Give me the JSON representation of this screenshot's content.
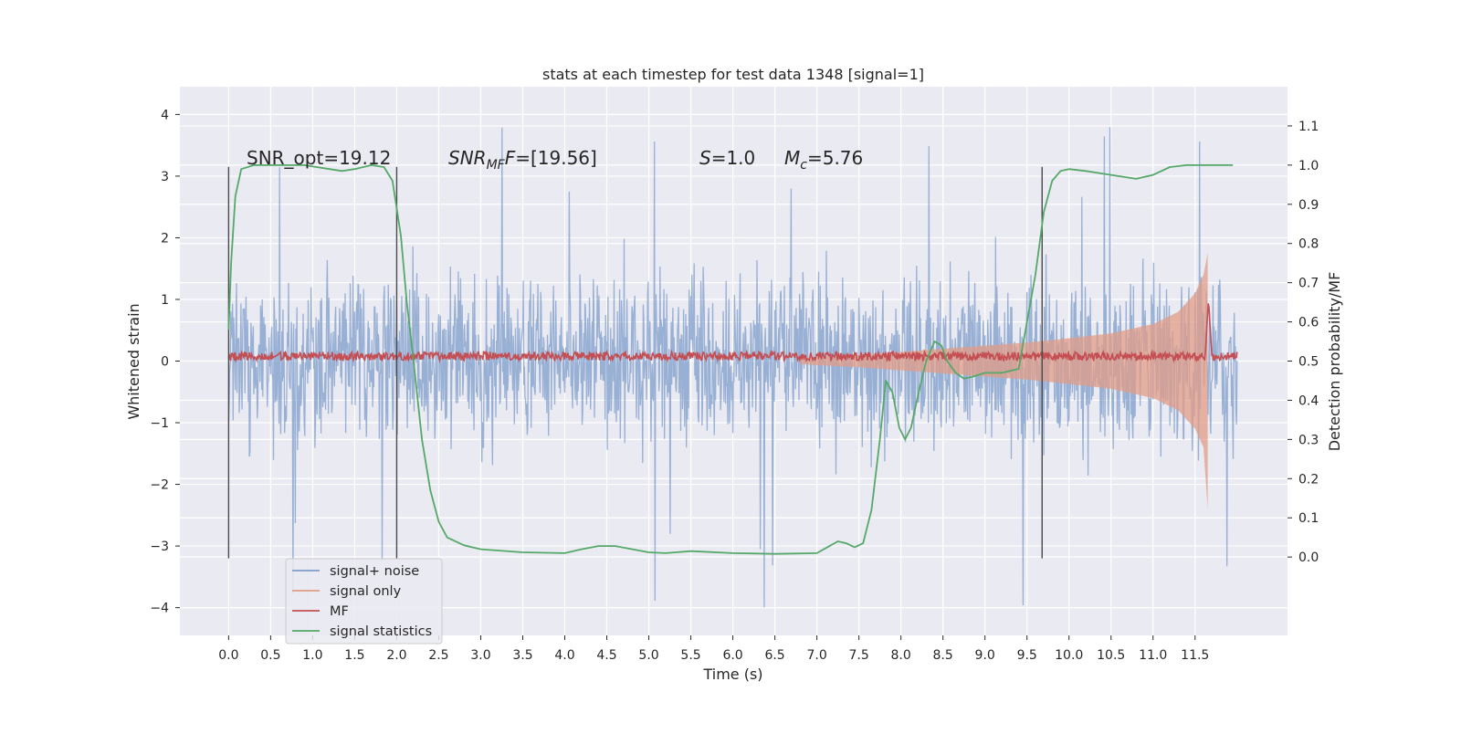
{
  "chart_data": {
    "type": "line",
    "title": "stats at each timestep for test data 1348 [signal=1]",
    "xlabel": "Time (s)",
    "ylabel": "Whitened strain",
    "ylabel_right": "Detection probability/MF",
    "xlim": [
      -0.58,
      12.6
    ],
    "ylim": [
      -4.45,
      4.45
    ],
    "ylim_right": [
      -0.2,
      1.2
    ],
    "x_ticks": [
      "0.0",
      "0.5",
      "1.0",
      "1.5",
      "2.0",
      "2.5",
      "3.0",
      "3.5",
      "4.0",
      "4.5",
      "5.0",
      "5.5",
      "6.0",
      "6.5",
      "7.0",
      "7.5",
      "8.0",
      "8.5",
      "9.0",
      "9.5",
      "10.0",
      "10.5",
      "11.0",
      "11.5"
    ],
    "y_ticks": [
      "4",
      "3",
      "2",
      "1",
      "0",
      "−1",
      "−2",
      "−3",
      "−4"
    ],
    "y_ticks_right": [
      "1.1",
      "1.0",
      "0.9",
      "0.8",
      "0.7",
      "0.6",
      "0.5",
      "0.4",
      "0.3",
      "0.2",
      "0.1",
      "0.0"
    ],
    "grid": true,
    "legend_position": "lower-left",
    "annotations": {
      "snr_opt": "SNR_opt=19.12",
      "snr_mf_main": "SNR",
      "snr_mf_sub": "MF",
      "snr_mf_value": "=[19.56]",
      "s_symbol": "S",
      "s_value": "=1.0",
      "mc_symbol": "M",
      "mc_sub": "c",
      "mc_value": "=5.76"
    },
    "vertical_lines_x": [
      0.0,
      2.0,
      9.68
    ],
    "series": [
      {
        "name": "signal+ noise",
        "axis": "left",
        "color": "#7e9ccb",
        "style": "noise band",
        "x_range": [
          0.0,
          12.0
        ],
        "amplitude_typical": 2.0,
        "amplitude_peak": 4.0
      },
      {
        "name": "signal only",
        "axis": "left",
        "color": "#e19c87",
        "style": "chirp envelope",
        "x": [
          6.8,
          7.5,
          8.0,
          8.5,
          9.0,
          9.5,
          10.0,
          10.5,
          11.0,
          11.3,
          11.5,
          11.6,
          11.65
        ],
        "y": [
          0.05,
          0.1,
          0.15,
          0.2,
          0.25,
          0.3,
          0.37,
          0.45,
          0.6,
          0.8,
          1.1,
          1.4,
          1.75
        ]
      },
      {
        "name": "MF",
        "axis": "left",
        "color": "#c44e52",
        "style": "noisy baseline",
        "baseline": 0.08,
        "peak_x": 11.66,
        "peak_y": 1.0
      },
      {
        "name": "signal statistics",
        "axis": "right",
        "color": "#55a868",
        "x": [
          0.0,
          0.03,
          0.08,
          0.15,
          0.3,
          0.6,
          0.9,
          1.2,
          1.35,
          1.5,
          1.7,
          1.85,
          1.95,
          2.05,
          2.12,
          2.2,
          2.3,
          2.4,
          2.5,
          2.6,
          2.8,
          3.0,
          3.5,
          4.0,
          4.2,
          4.4,
          4.6,
          5.0,
          5.2,
          5.5,
          6.0,
          6.5,
          7.0,
          7.1,
          7.25,
          7.35,
          7.45,
          7.55,
          7.65,
          7.75,
          7.82,
          7.9,
          7.98,
          8.05,
          8.12,
          8.2,
          8.3,
          8.4,
          8.48,
          8.55,
          8.65,
          8.75,
          8.85,
          9.0,
          9.2,
          9.4,
          9.5,
          9.6,
          9.7,
          9.8,
          9.9,
          10.0,
          10.2,
          10.5,
          10.8,
          11.0,
          11.2,
          11.4,
          11.7,
          11.95
        ],
        "y": [
          0.58,
          0.75,
          0.92,
          0.99,
          1.0,
          1.0,
          1.0,
          0.99,
          0.985,
          0.99,
          1.0,
          0.995,
          0.96,
          0.82,
          0.65,
          0.5,
          0.3,
          0.17,
          0.09,
          0.05,
          0.03,
          0.02,
          0.012,
          0.01,
          0.02,
          0.028,
          0.028,
          0.012,
          0.01,
          0.015,
          0.01,
          0.008,
          0.01,
          0.022,
          0.04,
          0.035,
          0.025,
          0.035,
          0.12,
          0.3,
          0.45,
          0.42,
          0.33,
          0.3,
          0.33,
          0.41,
          0.5,
          0.55,
          0.54,
          0.5,
          0.47,
          0.455,
          0.46,
          0.47,
          0.47,
          0.48,
          0.6,
          0.72,
          0.88,
          0.96,
          0.985,
          0.99,
          0.985,
          0.975,
          0.965,
          0.975,
          0.995,
          1.0,
          1.0,
          1.0
        ]
      }
    ]
  }
}
